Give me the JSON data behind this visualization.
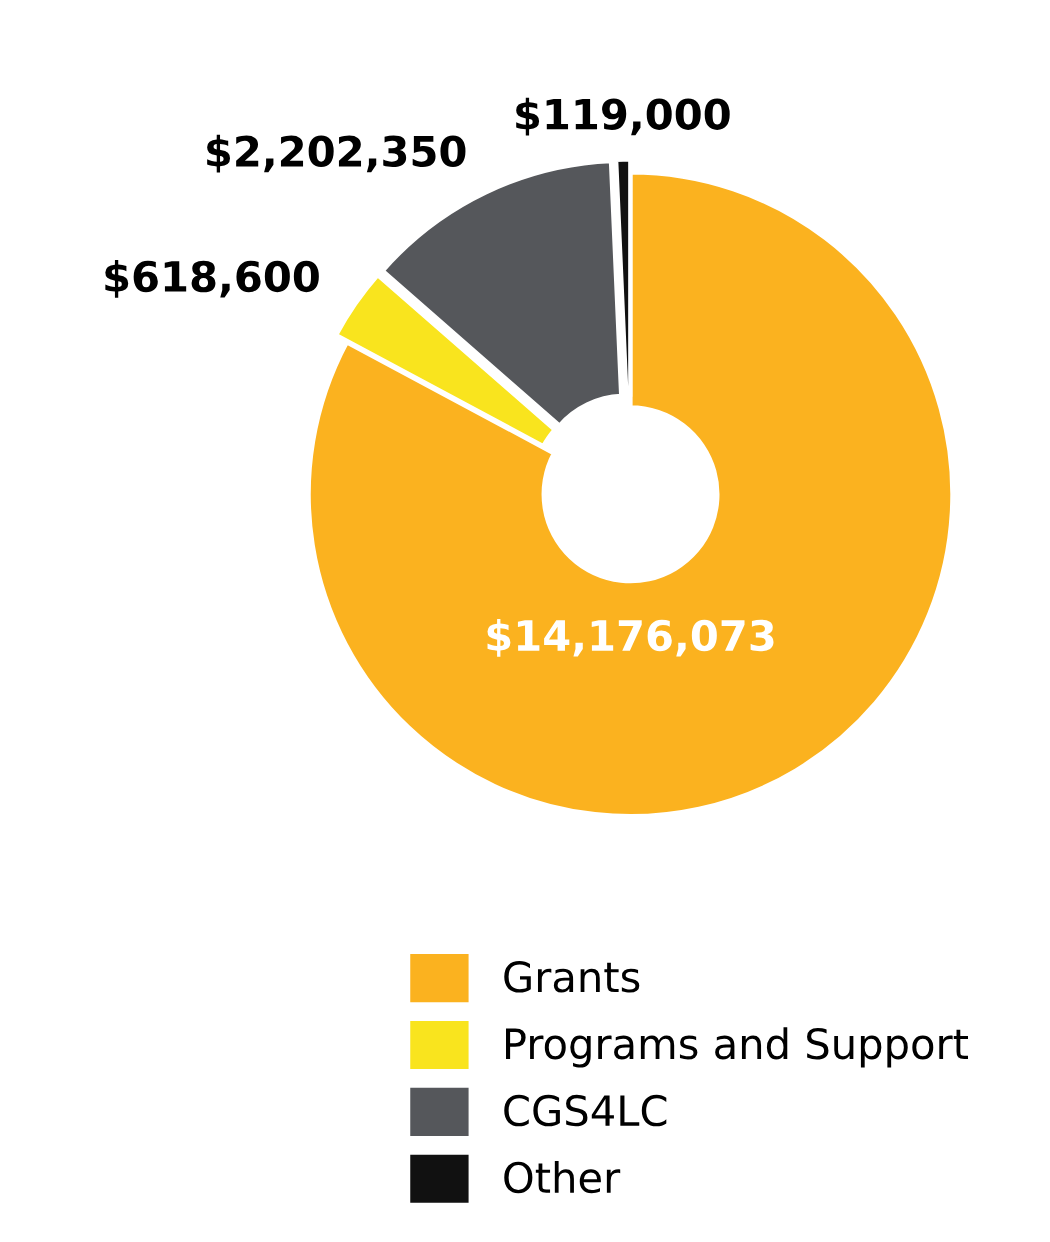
{
  "chart_data": {
    "type": "donut",
    "categories": [
      "Grants",
      "Programs and Support",
      "CGS4LC",
      "Other"
    ],
    "values": [
      14176073,
      618600,
      2202350,
      119000
    ],
    "colors": [
      "#fbb21f",
      "#f9e41e",
      "#55575b",
      "#111111"
    ],
    "value_labels": [
      "$14,176,073",
      "$618,600",
      "$2,202,350",
      "$119,000"
    ],
    "legend": "bottom"
  }
}
